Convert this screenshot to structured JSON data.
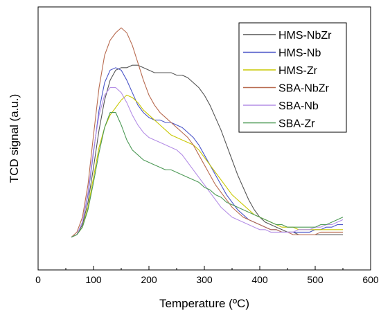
{
  "chart_data": {
    "type": "line",
    "xlabel": "Temperature (ºC)",
    "ylabel": "TCD signal (a.u.)",
    "xlim": [
      0,
      600
    ],
    "ylim": [
      0,
      1
    ],
    "xticks": [
      0,
      100,
      200,
      300,
      400,
      500,
      600
    ],
    "show_y_ticks": false,
    "grid": false,
    "legend_position": "top-right",
    "series": [
      {
        "name": "HMS-NbZr",
        "color": "#555555",
        "points": [
          [
            60,
            0.09
          ],
          [
            70,
            0.1
          ],
          [
            80,
            0.14
          ],
          [
            90,
            0.23
          ],
          [
            100,
            0.37
          ],
          [
            110,
            0.52
          ],
          [
            120,
            0.64
          ],
          [
            130,
            0.72
          ],
          [
            140,
            0.76
          ],
          [
            150,
            0.77
          ],
          [
            160,
            0.77
          ],
          [
            170,
            0.78
          ],
          [
            180,
            0.78
          ],
          [
            190,
            0.77
          ],
          [
            200,
            0.76
          ],
          [
            210,
            0.75
          ],
          [
            220,
            0.75
          ],
          [
            230,
            0.75
          ],
          [
            240,
            0.75
          ],
          [
            250,
            0.74
          ],
          [
            260,
            0.74
          ],
          [
            270,
            0.73
          ],
          [
            280,
            0.71
          ],
          [
            290,
            0.69
          ],
          [
            300,
            0.66
          ],
          [
            310,
            0.62
          ],
          [
            320,
            0.57
          ],
          [
            330,
            0.52
          ],
          [
            340,
            0.46
          ],
          [
            350,
            0.4
          ],
          [
            360,
            0.34
          ],
          [
            370,
            0.29
          ],
          [
            380,
            0.24
          ],
          [
            390,
            0.2
          ],
          [
            400,
            0.17
          ],
          [
            410,
            0.15
          ],
          [
            420,
            0.14
          ],
          [
            430,
            0.13
          ],
          [
            440,
            0.12
          ],
          [
            450,
            0.11
          ],
          [
            460,
            0.11
          ],
          [
            470,
            0.1
          ],
          [
            480,
            0.1
          ],
          [
            490,
            0.1
          ],
          [
            500,
            0.1
          ],
          [
            510,
            0.1
          ],
          [
            520,
            0.1
          ],
          [
            530,
            0.1
          ],
          [
            540,
            0.1
          ],
          [
            550,
            0.1
          ]
        ]
      },
      {
        "name": "HMS-Nb",
        "color": "#4a55c8",
        "points": [
          [
            60,
            0.09
          ],
          [
            70,
            0.1
          ],
          [
            80,
            0.15
          ],
          [
            90,
            0.26
          ],
          [
            100,
            0.43
          ],
          [
            110,
            0.6
          ],
          [
            120,
            0.71
          ],
          [
            130,
            0.76
          ],
          [
            140,
            0.77
          ],
          [
            150,
            0.76
          ],
          [
            160,
            0.72
          ],
          [
            170,
            0.67
          ],
          [
            180,
            0.62
          ],
          [
            190,
            0.59
          ],
          [
            200,
            0.57
          ],
          [
            210,
            0.56
          ],
          [
            220,
            0.56
          ],
          [
            230,
            0.55
          ],
          [
            240,
            0.55
          ],
          [
            250,
            0.54
          ],
          [
            260,
            0.53
          ],
          [
            270,
            0.51
          ],
          [
            280,
            0.49
          ],
          [
            290,
            0.46
          ],
          [
            300,
            0.42
          ],
          [
            310,
            0.38
          ],
          [
            320,
            0.34
          ],
          [
            330,
            0.3
          ],
          [
            340,
            0.26
          ],
          [
            350,
            0.23
          ],
          [
            360,
            0.2
          ],
          [
            370,
            0.18
          ],
          [
            380,
            0.16
          ],
          [
            390,
            0.15
          ],
          [
            400,
            0.14
          ],
          [
            410,
            0.13
          ],
          [
            420,
            0.12
          ],
          [
            430,
            0.12
          ],
          [
            440,
            0.11
          ],
          [
            450,
            0.11
          ],
          [
            460,
            0.11
          ],
          [
            470,
            0.11
          ],
          [
            480,
            0.11
          ],
          [
            490,
            0.11
          ],
          [
            500,
            0.12
          ],
          [
            510,
            0.12
          ],
          [
            520,
            0.13
          ],
          [
            530,
            0.13
          ],
          [
            540,
            0.14
          ],
          [
            550,
            0.14
          ]
        ]
      },
      {
        "name": "HMS-Zr",
        "color": "#c8c800",
        "points": [
          [
            60,
            0.09
          ],
          [
            70,
            0.1
          ],
          [
            80,
            0.13
          ],
          [
            90,
            0.21
          ],
          [
            100,
            0.33
          ],
          [
            110,
            0.45
          ],
          [
            120,
            0.53
          ],
          [
            130,
            0.58
          ],
          [
            140,
            0.61
          ],
          [
            150,
            0.64
          ],
          [
            160,
            0.66
          ],
          [
            170,
            0.65
          ],
          [
            180,
            0.63
          ],
          [
            190,
            0.6
          ],
          [
            200,
            0.58
          ],
          [
            210,
            0.56
          ],
          [
            220,
            0.54
          ],
          [
            230,
            0.52
          ],
          [
            240,
            0.5
          ],
          [
            250,
            0.49
          ],
          [
            260,
            0.48
          ],
          [
            270,
            0.47
          ],
          [
            280,
            0.46
          ],
          [
            290,
            0.44
          ],
          [
            300,
            0.41
          ],
          [
            310,
            0.38
          ],
          [
            320,
            0.35
          ],
          [
            330,
            0.32
          ],
          [
            340,
            0.29
          ],
          [
            350,
            0.26
          ],
          [
            360,
            0.24
          ],
          [
            370,
            0.22
          ],
          [
            380,
            0.2
          ],
          [
            390,
            0.18
          ],
          [
            400,
            0.17
          ],
          [
            410,
            0.16
          ],
          [
            420,
            0.15
          ],
          [
            430,
            0.14
          ],
          [
            440,
            0.13
          ],
          [
            450,
            0.13
          ],
          [
            460,
            0.13
          ],
          [
            470,
            0.12
          ],
          [
            480,
            0.12
          ],
          [
            490,
            0.12
          ],
          [
            500,
            0.12
          ],
          [
            510,
            0.12
          ],
          [
            520,
            0.12
          ],
          [
            530,
            0.12
          ],
          [
            540,
            0.12
          ],
          [
            550,
            0.12
          ]
        ]
      },
      {
        "name": "SBA-NbZr",
        "color": "#b86b50",
        "points": [
          [
            60,
            0.09
          ],
          [
            70,
            0.11
          ],
          [
            80,
            0.17
          ],
          [
            90,
            0.3
          ],
          [
            100,
            0.5
          ],
          [
            110,
            0.69
          ],
          [
            120,
            0.82
          ],
          [
            130,
            0.88
          ],
          [
            140,
            0.91
          ],
          [
            150,
            0.93
          ],
          [
            160,
            0.91
          ],
          [
            170,
            0.86
          ],
          [
            180,
            0.79
          ],
          [
            190,
            0.72
          ],
          [
            200,
            0.66
          ],
          [
            210,
            0.62
          ],
          [
            220,
            0.59
          ],
          [
            230,
            0.57
          ],
          [
            240,
            0.55
          ],
          [
            250,
            0.53
          ],
          [
            260,
            0.51
          ],
          [
            270,
            0.49
          ],
          [
            280,
            0.46
          ],
          [
            290,
            0.42
          ],
          [
            300,
            0.38
          ],
          [
            310,
            0.34
          ],
          [
            320,
            0.3
          ],
          [
            330,
            0.27
          ],
          [
            340,
            0.24
          ],
          [
            350,
            0.21
          ],
          [
            360,
            0.19
          ],
          [
            370,
            0.17
          ],
          [
            380,
            0.16
          ],
          [
            390,
            0.15
          ],
          [
            400,
            0.14
          ],
          [
            410,
            0.13
          ],
          [
            420,
            0.12
          ],
          [
            430,
            0.12
          ],
          [
            440,
            0.11
          ],
          [
            450,
            0.11
          ],
          [
            460,
            0.1
          ],
          [
            470,
            0.1
          ],
          [
            480,
            0.1
          ],
          [
            490,
            0.1
          ],
          [
            500,
            0.1
          ],
          [
            510,
            0.11
          ],
          [
            520,
            0.11
          ],
          [
            530,
            0.11
          ],
          [
            540,
            0.11
          ],
          [
            550,
            0.11
          ]
        ]
      },
      {
        "name": "SBA-Nb",
        "color": "#b48ee6",
        "points": [
          [
            60,
            0.09
          ],
          [
            70,
            0.1
          ],
          [
            80,
            0.15
          ],
          [
            90,
            0.27
          ],
          [
            100,
            0.44
          ],
          [
            110,
            0.58
          ],
          [
            120,
            0.66
          ],
          [
            130,
            0.69
          ],
          [
            140,
            0.69
          ],
          [
            150,
            0.67
          ],
          [
            160,
            0.63
          ],
          [
            170,
            0.58
          ],
          [
            180,
            0.54
          ],
          [
            190,
            0.51
          ],
          [
            200,
            0.49
          ],
          [
            210,
            0.48
          ],
          [
            220,
            0.47
          ],
          [
            230,
            0.46
          ],
          [
            240,
            0.45
          ],
          [
            250,
            0.44
          ],
          [
            260,
            0.42
          ],
          [
            270,
            0.39
          ],
          [
            280,
            0.36
          ],
          [
            290,
            0.33
          ],
          [
            300,
            0.3
          ],
          [
            310,
            0.27
          ],
          [
            320,
            0.24
          ],
          [
            330,
            0.21
          ],
          [
            340,
            0.19
          ],
          [
            350,
            0.17
          ],
          [
            360,
            0.16
          ],
          [
            370,
            0.15
          ],
          [
            380,
            0.14
          ],
          [
            390,
            0.13
          ],
          [
            400,
            0.12
          ],
          [
            410,
            0.12
          ],
          [
            420,
            0.11
          ],
          [
            430,
            0.11
          ],
          [
            440,
            0.11
          ],
          [
            450,
            0.11
          ],
          [
            460,
            0.11
          ],
          [
            470,
            0.12
          ],
          [
            480,
            0.12
          ],
          [
            490,
            0.12
          ],
          [
            500,
            0.13
          ],
          [
            510,
            0.13
          ],
          [
            520,
            0.14
          ],
          [
            530,
            0.14
          ],
          [
            540,
            0.15
          ],
          [
            550,
            0.16
          ]
        ]
      },
      {
        "name": "SBA-Zr",
        "color": "#4e9a57",
        "points": [
          [
            60,
            0.09
          ],
          [
            70,
            0.1
          ],
          [
            80,
            0.13
          ],
          [
            90,
            0.2
          ],
          [
            100,
            0.31
          ],
          [
            110,
            0.43
          ],
          [
            120,
            0.53
          ],
          [
            130,
            0.59
          ],
          [
            140,
            0.59
          ],
          [
            150,
            0.54
          ],
          [
            160,
            0.48
          ],
          [
            170,
            0.44
          ],
          [
            180,
            0.42
          ],
          [
            190,
            0.4
          ],
          [
            200,
            0.39
          ],
          [
            210,
            0.38
          ],
          [
            220,
            0.37
          ],
          [
            230,
            0.36
          ],
          [
            240,
            0.36
          ],
          [
            250,
            0.35
          ],
          [
            260,
            0.34
          ],
          [
            270,
            0.33
          ],
          [
            280,
            0.32
          ],
          [
            290,
            0.31
          ],
          [
            300,
            0.29
          ],
          [
            310,
            0.28
          ],
          [
            320,
            0.26
          ],
          [
            330,
            0.25
          ],
          [
            340,
            0.23
          ],
          [
            350,
            0.22
          ],
          [
            360,
            0.21
          ],
          [
            370,
            0.2
          ],
          [
            380,
            0.19
          ],
          [
            390,
            0.18
          ],
          [
            400,
            0.17
          ],
          [
            410,
            0.16
          ],
          [
            420,
            0.15
          ],
          [
            430,
            0.14
          ],
          [
            440,
            0.14
          ],
          [
            450,
            0.13
          ],
          [
            460,
            0.13
          ],
          [
            470,
            0.13
          ],
          [
            480,
            0.13
          ],
          [
            490,
            0.13
          ],
          [
            500,
            0.13
          ],
          [
            510,
            0.14
          ],
          [
            520,
            0.14
          ],
          [
            530,
            0.15
          ],
          [
            540,
            0.16
          ],
          [
            550,
            0.17
          ]
        ]
      }
    ]
  }
}
